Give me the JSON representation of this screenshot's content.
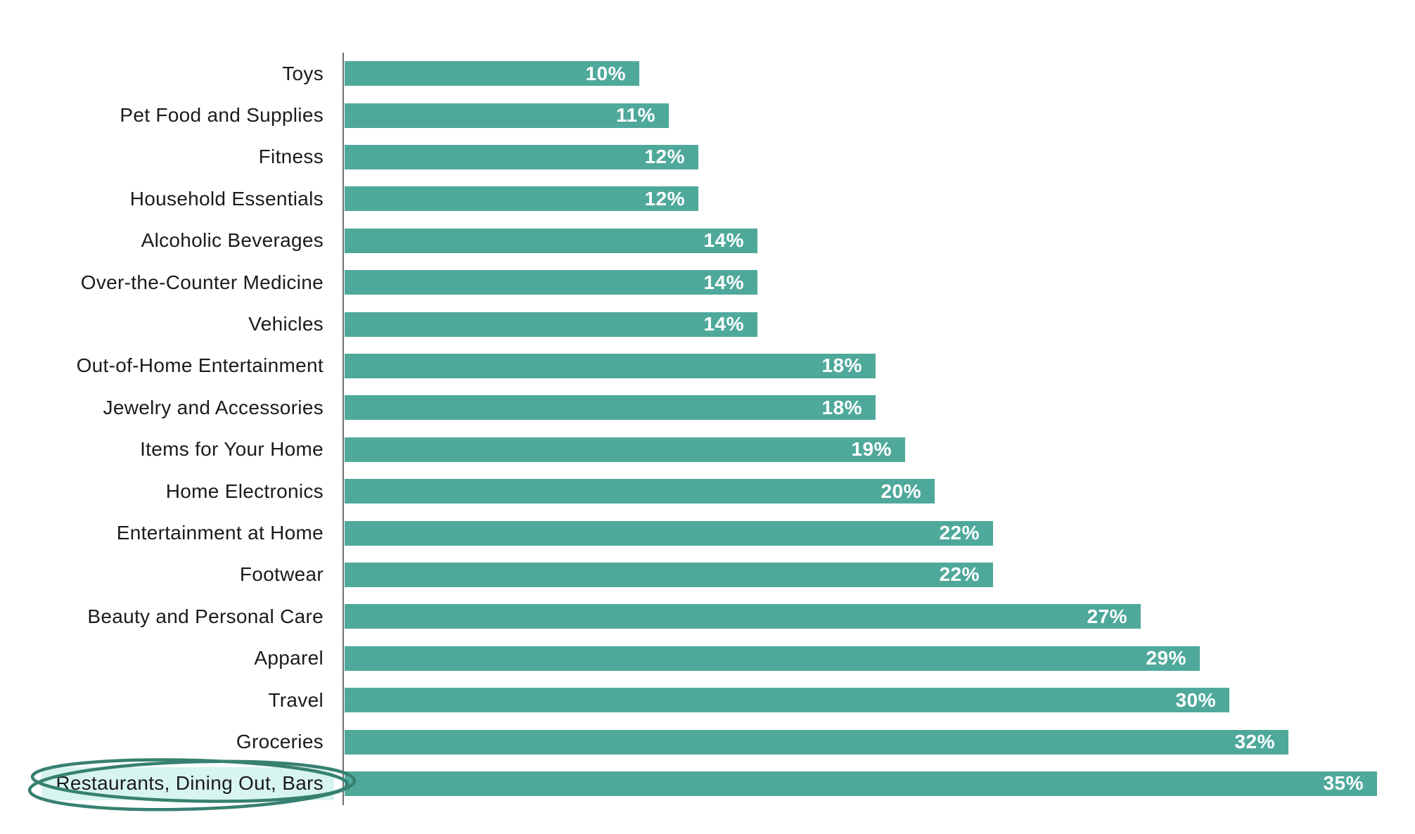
{
  "chart_data": {
    "type": "bar",
    "orientation": "horizontal",
    "title": "",
    "xlabel": "",
    "ylabel": "",
    "xlim": [
      0,
      35
    ],
    "grid": false,
    "legend": false,
    "categories": [
      "Toys",
      "Pet Food and Supplies",
      "Fitness",
      "Household Essentials",
      "Alcoholic Beverages",
      "Over-the-Counter Medicine",
      "Vehicles",
      "Out-of-Home Entertainment",
      "Jewelry and Accessories",
      "Items for Your Home",
      "Home Electronics",
      "Entertainment at Home",
      "Footwear",
      "Beauty and Personal Care",
      "Apparel",
      "Travel",
      "Groceries",
      "Restaurants, Dining Out, Bars"
    ],
    "values": [
      10,
      11,
      12,
      12,
      14,
      14,
      14,
      18,
      18,
      19,
      20,
      22,
      22,
      27,
      29,
      30,
      32,
      35
    ],
    "value_labels": [
      "10%",
      "11%",
      "12%",
      "12%",
      "14%",
      "14%",
      "14%",
      "18%",
      "18%",
      "19%",
      "20%",
      "22%",
      "22%",
      "27%",
      "29%",
      "30%",
      "32%",
      "35%"
    ],
    "annotation": {
      "highlighted_category": "Restaurants, Dining Out, Bars",
      "style": "hand-drawn double ellipse circle with pale highlight behind label"
    },
    "colors": {
      "bar": "#4FA99B",
      "value_text": "#FFFFFF",
      "label_text": "#1B1B1B",
      "axis": "#6E6E6E",
      "highlight_bg": "#D7F4EF",
      "circle_stroke": "#37806F",
      "background": "#FFFFFF"
    }
  }
}
